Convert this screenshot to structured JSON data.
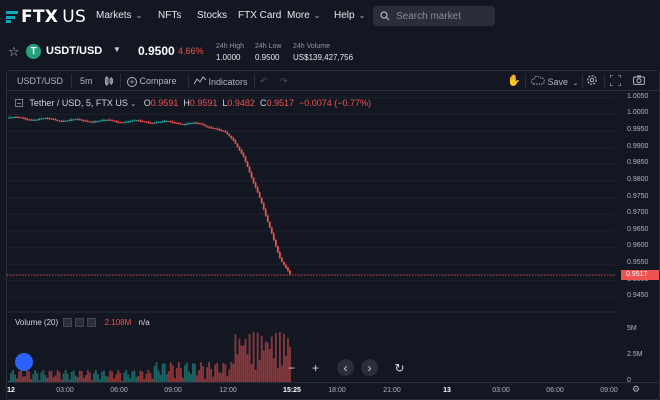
{
  "nav": {
    "brand": "FTX",
    "brand_suffix": "US",
    "items": [
      {
        "label": "Markets",
        "dropdown": true
      },
      {
        "label": "NFTs",
        "dropdown": false
      },
      {
        "label": "Stocks",
        "dropdown": false
      },
      {
        "label": "FTX Card",
        "dropdown": false
      },
      {
        "label": "More",
        "dropdown": true
      },
      {
        "label": "Help",
        "dropdown": true
      }
    ],
    "search_placeholder": "Search market"
  },
  "ticker": {
    "pair": "USDT/USD",
    "price": "0.9500",
    "change": "4.66%",
    "high_label": "24h High",
    "high_value": "1.0000",
    "low_label": "24h Low",
    "low_value": "0.9500",
    "volume_label": "24h Volume",
    "volume_value": "US$139,427,756"
  },
  "toolbar": {
    "symbol": "USDT/USD",
    "interval": "5m",
    "compare": "Compare",
    "indicators": "Indicators",
    "save": "Save"
  },
  "legend": {
    "symbol": "Tether / USD, 5, FTX US",
    "o_label": "O",
    "o": "0.9591",
    "h_label": "H",
    "h": "0.9591",
    "l_label": "L",
    "l": "0.9482",
    "c_label": "C",
    "c": "0.9517",
    "change": "−0.0074 (−0.77%)"
  },
  "volume_legend": {
    "label": "Volume (20)",
    "value": "2.108M",
    "na": "n/a"
  },
  "colors": {
    "up": "#26a69a",
    "down": "#ef5350",
    "background": "#131722",
    "accent": "#11a9bc"
  },
  "chart_data": {
    "type": "candlestick",
    "last_price": "0.9517",
    "y_ticks": [
      "1.0050",
      "1.0000",
      "0.9950",
      "0.9900",
      "0.9850",
      "0.9800",
      "0.9750",
      "0.9700",
      "0.9650",
      "0.9600",
      "0.9550",
      "0.9500",
      "0.9450"
    ],
    "ylim": [
      0.943,
      1.0055
    ],
    "volume_ticks": [
      "5M",
      "2.5M",
      "0"
    ],
    "x_ticks": [
      "12",
      "03:00",
      "06:00",
      "09:00",
      "12:00",
      "15:25",
      "18:00",
      "21:00",
      "13",
      "03:00",
      "06:00",
      "09:00"
    ],
    "series_close": [
      0.999,
      0.9988,
      0.9987,
      0.9986,
      0.9985,
      0.9984,
      0.9983,
      0.9982,
      0.9981,
      0.9981,
      0.998,
      0.998,
      0.9979,
      0.9979,
      0.9978,
      0.9978,
      0.9977,
      0.9976,
      0.9975,
      0.9973,
      0.9971,
      0.9966,
      0.996,
      0.9945,
      0.992,
      0.988,
      0.98,
      0.973,
      0.965,
      0.956,
      0.9517
    ],
    "grid": true
  }
}
